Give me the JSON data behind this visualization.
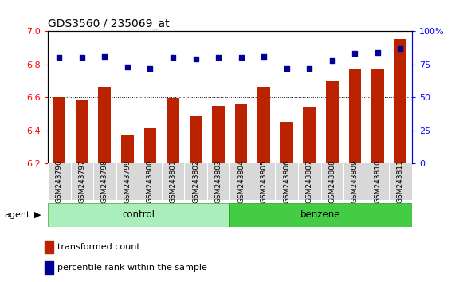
{
  "title": "GDS3560 / 235069_at",
  "categories": [
    "GSM243796",
    "GSM243797",
    "GSM243798",
    "GSM243799",
    "GSM243800",
    "GSM243801",
    "GSM243802",
    "GSM243803",
    "GSM243804",
    "GSM243805",
    "GSM243806",
    "GSM243807",
    "GSM243808",
    "GSM243809",
    "GSM243810",
    "GSM243811"
  ],
  "bar_vals": [
    6.6,
    6.585,
    6.665,
    6.375,
    6.415,
    6.595,
    6.49,
    6.55,
    6.555,
    6.665,
    6.45,
    6.545,
    6.695,
    6.77,
    6.77,
    6.95
  ],
  "pr_vals": [
    80,
    80,
    81,
    73,
    72,
    80,
    79,
    80,
    80,
    81,
    72,
    72,
    78,
    83,
    84,
    87
  ],
  "ylim_left": [
    6.2,
    7.0
  ],
  "ylim_right": [
    0,
    100
  ],
  "yticks_left": [
    6.2,
    6.4,
    6.6,
    6.8,
    7.0
  ],
  "yticks_right": [
    0,
    25,
    50,
    75,
    100
  ],
  "ytick_labels_right": [
    "0",
    "25",
    "50",
    "75",
    "100%"
  ],
  "bar_color": "#bb2200",
  "dot_color": "#000099",
  "plot_bg": "#ffffff",
  "ticklabel_bg": "#d8d8d8",
  "ticklabel_edge": "#aaaaaa",
  "control_bg": "#aaeebb",
  "benzene_bg": "#44cc44",
  "agent_row_bg": "#cccccc",
  "grid_color": "#000000",
  "legend_bar_label": "transformed count",
  "legend_dot_label": "percentile rank within the sample",
  "agent_text": "agent",
  "control_text": "control",
  "benzene_text": "benzene",
  "n_control": 8,
  "n_benzene": 8
}
